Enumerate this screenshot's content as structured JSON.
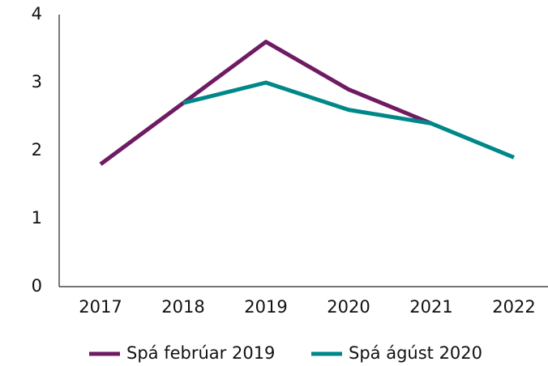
{
  "chart_data": {
    "type": "line",
    "categories": [
      "2017",
      "2018",
      "2019",
      "2020",
      "2021",
      "2022"
    ],
    "series": [
      {
        "name": "Spá febrúar 2019",
        "color": "#6e1b63",
        "values": [
          1.8,
          2.7,
          3.6,
          2.9,
          2.4,
          null
        ]
      },
      {
        "name": "Spá ágúst 2020",
        "color": "#00878a",
        "values": [
          null,
          2.7,
          3.0,
          2.6,
          2.4,
          1.9
        ]
      }
    ],
    "ylim": [
      0,
      4
    ],
    "yticks": [
      0,
      1,
      2,
      3,
      4
    ],
    "legend": "bottom"
  }
}
